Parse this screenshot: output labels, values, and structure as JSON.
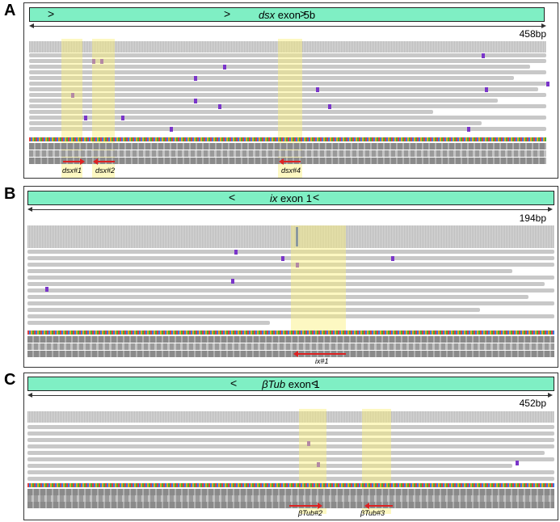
{
  "panels": [
    {
      "label": "A",
      "exon_gene": "dsx",
      "exon_rest": " exon 5b",
      "chevron": ">",
      "length": "458bp",
      "guides": [
        "dsx#1",
        "dsx#2",
        "dsx#4"
      ]
    },
    {
      "label": "B",
      "exon_gene": "ix",
      "exon_rest": " exon 1",
      "chevron": "<",
      "length": "194bp",
      "guides": [
        "ix#1"
      ]
    },
    {
      "label": "C",
      "exon_gene": "βTub",
      "exon_rest": " exon 1",
      "chevron": "<",
      "length": "452bp",
      "guides": [
        "βTub#2",
        "βTub#3"
      ]
    }
  ],
  "colors": {
    "exon": "#7fefc4",
    "insertion": "#7a35c9",
    "guide_arrow": "#dd2222",
    "highlight": "#faf078"
  }
}
